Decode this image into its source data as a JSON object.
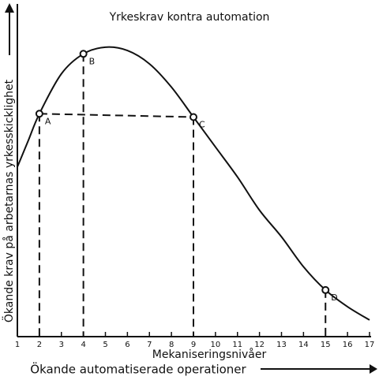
{
  "chart_data": {
    "type": "line",
    "title": "Yrkeskrav kontra automation",
    "xlabel": "Mekaniseringsnivåer",
    "x_arrow_label": "Ökande automatiserade operationer",
    "ylabel": "Ökande krav på arbetarnas yrkesskicklighet",
    "color": "#111111",
    "xlim": [
      1,
      17
    ],
    "xticks": [
      1,
      2,
      3,
      4,
      5,
      6,
      7,
      8,
      9,
      10,
      11,
      12,
      13,
      14,
      15,
      16,
      17
    ],
    "ylim": [
      0,
      100
    ],
    "curve": {
      "x": [
        1,
        1.5,
        2,
        3,
        4,
        5,
        6,
        7,
        8,
        9,
        10,
        11,
        12,
        13,
        14,
        15,
        16,
        17
      ],
      "values": [
        51,
        59,
        67,
        79,
        85,
        87,
        86,
        82,
        75,
        66,
        57,
        48,
        38,
        30,
        21,
        14,
        9,
        5
      ]
    },
    "points": {
      "labels": [
        "A",
        "B",
        "C",
        "D"
      ],
      "x": [
        2,
        4,
        9,
        15
      ],
      "values": [
        67,
        85,
        66,
        14
      ]
    }
  }
}
